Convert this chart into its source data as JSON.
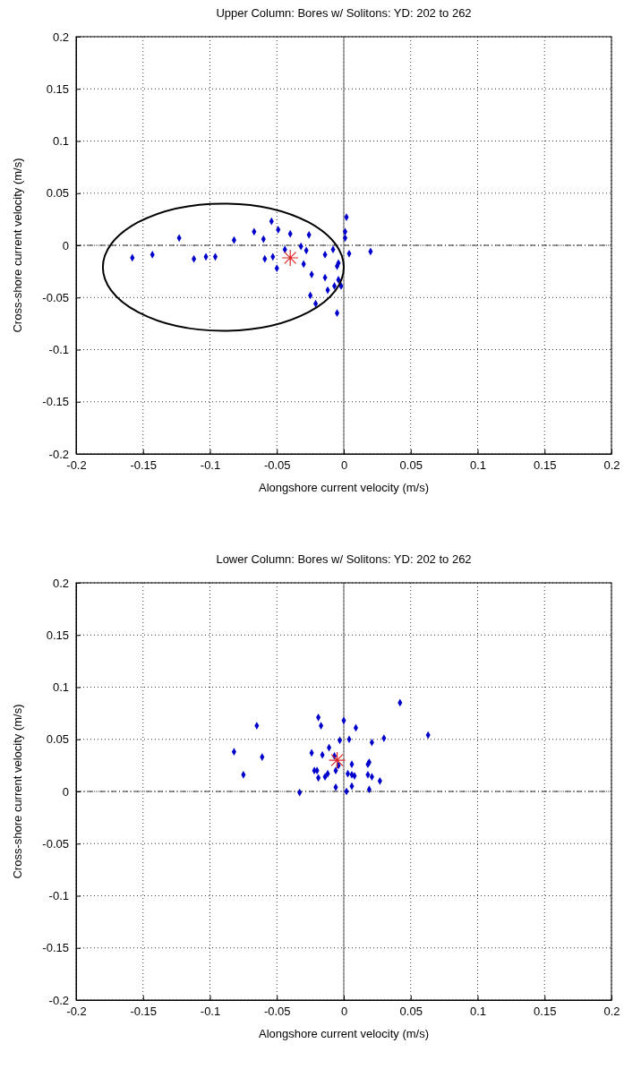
{
  "chart_data": [
    {
      "type": "scatter",
      "title": "Upper Column: Bores w/ Solitons: YD: 202 to 262",
      "xlabel": "Alongshore current velocity (m/s)",
      "ylabel": "Cross-shore current velocity (m/s)",
      "xlim": [
        -0.2,
        0.2
      ],
      "ylim": [
        -0.2,
        0.2
      ],
      "xticks": [
        -0.2,
        -0.15,
        -0.1,
        -0.05,
        0,
        0.05,
        0.1,
        0.15,
        0.2
      ],
      "yticks": [
        -0.2,
        -0.15,
        -0.1,
        -0.05,
        0,
        0.05,
        0.1,
        0.15,
        0.2
      ],
      "grid": true,
      "ref_lines": [
        {
          "axis": "x",
          "value": 0,
          "color": "#777777",
          "line_style": "solid"
        },
        {
          "axis": "y",
          "value": 0,
          "color": "#333333",
          "line_style": "dashed"
        }
      ],
      "series": [
        {
          "type": "scatter",
          "color": "#0000cc",
          "marker": "diamond",
          "x": [
            -0.158,
            -0.143,
            -0.123,
            -0.112,
            -0.103,
            -0.096,
            -0.082,
            -0.067,
            -0.06,
            -0.059,
            -0.054,
            -0.053,
            -0.049,
            -0.05,
            -0.044,
            -0.04,
            -0.032,
            -0.028,
            -0.026,
            -0.03,
            -0.024,
            -0.014,
            -0.014,
            -0.008,
            -0.012,
            -0.025,
            -0.021,
            -0.007,
            -0.004,
            -0.005,
            -0.004,
            -0.002,
            -0.005,
            0.002,
            0.001,
            0.001,
            0.004,
            0.02
          ],
          "values": [
            -0.012,
            -0.009,
            0.007,
            -0.013,
            -0.011,
            -0.011,
            0.005,
            0.013,
            0.006,
            -0.013,
            0.023,
            -0.011,
            0.015,
            -0.022,
            -0.004,
            0.011,
            -0.001,
            -0.005,
            0.01,
            -0.018,
            -0.028,
            -0.009,
            -0.031,
            -0.004,
            -0.043,
            -0.048,
            -0.056,
            -0.039,
            -0.017,
            -0.02,
            -0.033,
            -0.039,
            -0.065,
            0.027,
            0.013,
            0.007,
            -0.008,
            -0.006
          ]
        },
        {
          "type": "scatter",
          "color": "#dd2222",
          "marker": "cross",
          "x": [
            -0.04
          ],
          "values": [
            -0.012
          ]
        }
      ]
    },
    {
      "type": "scatter",
      "title": "Lower Column: Bores w/ Solitons: YD: 202 to 262",
      "xlabel": "Alongshore current velocity (m/s)",
      "ylabel": "Cross-shore current velocity (m/s)",
      "xlim": [
        -0.2,
        0.2
      ],
      "ylim": [
        -0.2,
        0.2
      ],
      "xticks": [
        -0.2,
        -0.15,
        -0.1,
        -0.05,
        0,
        0.05,
        0.1,
        0.15,
        0.2
      ],
      "yticks": [
        -0.2,
        -0.15,
        -0.1,
        -0.05,
        0,
        0.05,
        0.1,
        0.15,
        0.2
      ],
      "grid": true,
      "ref_lines": [
        {
          "axis": "x",
          "value": 0,
          "color": "#777777",
          "line_style": "solid"
        },
        {
          "axis": "y",
          "value": 0,
          "color": "#333333",
          "line_style": "dashed"
        }
      ],
      "series": [
        {
          "type": "scatter",
          "color": "#0000cc",
          "marker": "diamond",
          "x": [
            0.042,
            -0.019,
            0,
            -0.065,
            -0.017,
            0.009,
            0.063,
            0.03,
            0.004,
            -0.003,
            0.021,
            -0.011,
            -0.082,
            -0.024,
            -0.016,
            -0.061,
            -0.007,
            0.019,
            0.018,
            0.006,
            -0.004,
            -0.022,
            -0.02,
            -0.006,
            -0.075,
            -0.012,
            -0.014,
            -0.019,
            0.003,
            0.006,
            0.008,
            0.018,
            0.021,
            0.027,
            -0.006,
            0.006,
            0.019,
            0.002,
            -0.033
          ],
          "values": [
            0.085,
            0.071,
            0.068,
            0.063,
            0.063,
            0.061,
            0.054,
            0.051,
            0.05,
            0.049,
            0.047,
            0.042,
            0.038,
            0.037,
            0.035,
            0.033,
            0.034,
            0.028,
            0.026,
            0.026,
            0.025,
            0.02,
            0.02,
            0.02,
            0.016,
            0.017,
            0.014,
            0.013,
            0.017,
            0.016,
            0.015,
            0.016,
            0.014,
            0.01,
            0.004,
            0.005,
            0.002,
            0,
            -0.001
          ]
        },
        {
          "type": "scatter",
          "color": "#dd2222",
          "marker": "cross",
          "x": [
            -0.005
          ],
          "values": [
            0.03
          ]
        }
      ]
    }
  ]
}
